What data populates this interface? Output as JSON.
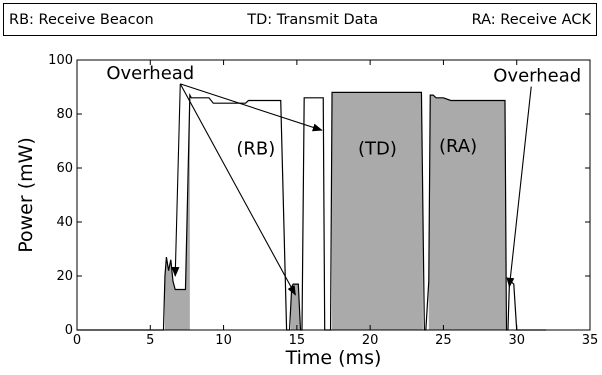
{
  "legend": {
    "items": [
      "RB: Receive Beacon",
      "TD: Transmit Data",
      "RA: Receive ACK"
    ]
  },
  "chart_data": {
    "type": "line",
    "title": "",
    "xlabel": "Time (ms)",
    "ylabel": "Power (mW)",
    "xlim": [
      0,
      35
    ],
    "ylim": [
      0,
      100
    ],
    "xticks": [
      0,
      5,
      10,
      15,
      20,
      25,
      30,
      35
    ],
    "yticks": [
      0,
      20,
      40,
      60,
      80,
      100
    ],
    "grid": false,
    "series": [
      {
        "x": [
          0,
          5.9,
          6.0,
          6.1,
          6.25,
          6.4,
          6.55,
          6.7,
          7.0,
          7.4,
          7.7,
          7.8,
          8.0,
          9.0,
          9.3,
          10.5,
          11.5,
          11.7,
          12.5,
          13.9,
          14.3,
          14.5,
          14.65,
          14.75,
          14.85,
          15.1,
          15.25,
          15.35,
          15.5,
          15.7,
          16.8,
          16.9,
          17.2,
          17.3,
          17.4,
          17.5,
          20.0,
          23.5,
          23.7,
          23.8,
          24.0,
          24.1,
          24.3,
          24.5,
          25.0,
          25.5,
          26.5,
          27.5,
          29.2,
          29.3,
          29.4,
          29.5,
          29.6,
          29.8,
          30.0,
          30.2,
          30.4,
          30.6,
          32.0
        ],
        "y": [
          0,
          0,
          20,
          27,
          22,
          26,
          18,
          15,
          15,
          15,
          87,
          86,
          86,
          86,
          84,
          84,
          84,
          85,
          85,
          85,
          0,
          0,
          16,
          17,
          17,
          17,
          0,
          0,
          86,
          86,
          86,
          0,
          0,
          0,
          88,
          88,
          88,
          88,
          0,
          0,
          18,
          87,
          87,
          86,
          86,
          85,
          85,
          85,
          85,
          0,
          0,
          17,
          18,
          17,
          0,
          0,
          0,
          0,
          0
        ]
      }
    ],
    "shaded_regions": [
      {
        "x_start": 6.0,
        "x_end": 7.7
      },
      {
        "x_start": 14.6,
        "x_end": 15.25
      },
      {
        "x_start": 17.4,
        "x_end": 23.6
      },
      {
        "x_start": 24.0,
        "x_end": 29.25
      }
    ],
    "region_labels": [
      {
        "text": "(RB)",
        "x": 12.2,
        "y": 65
      },
      {
        "text": "(TD)",
        "x": 20.5,
        "y": 65
      },
      {
        "text": "(RA)",
        "x": 26.0,
        "y": 66
      }
    ],
    "annotations": [
      {
        "text": "Overhead",
        "label_x": 5.0,
        "label_y": 93,
        "targets": [
          [
            6.7,
            20
          ],
          [
            14.9,
            13
          ],
          [
            16.7,
            74
          ]
        ]
      },
      {
        "text": "Overhead",
        "label_x": 31.4,
        "label_y": 92,
        "targets": [
          [
            29.5,
            16
          ]
        ]
      }
    ],
    "colors": {
      "fill": "#aaaaaa",
      "line": "#000000"
    }
  }
}
